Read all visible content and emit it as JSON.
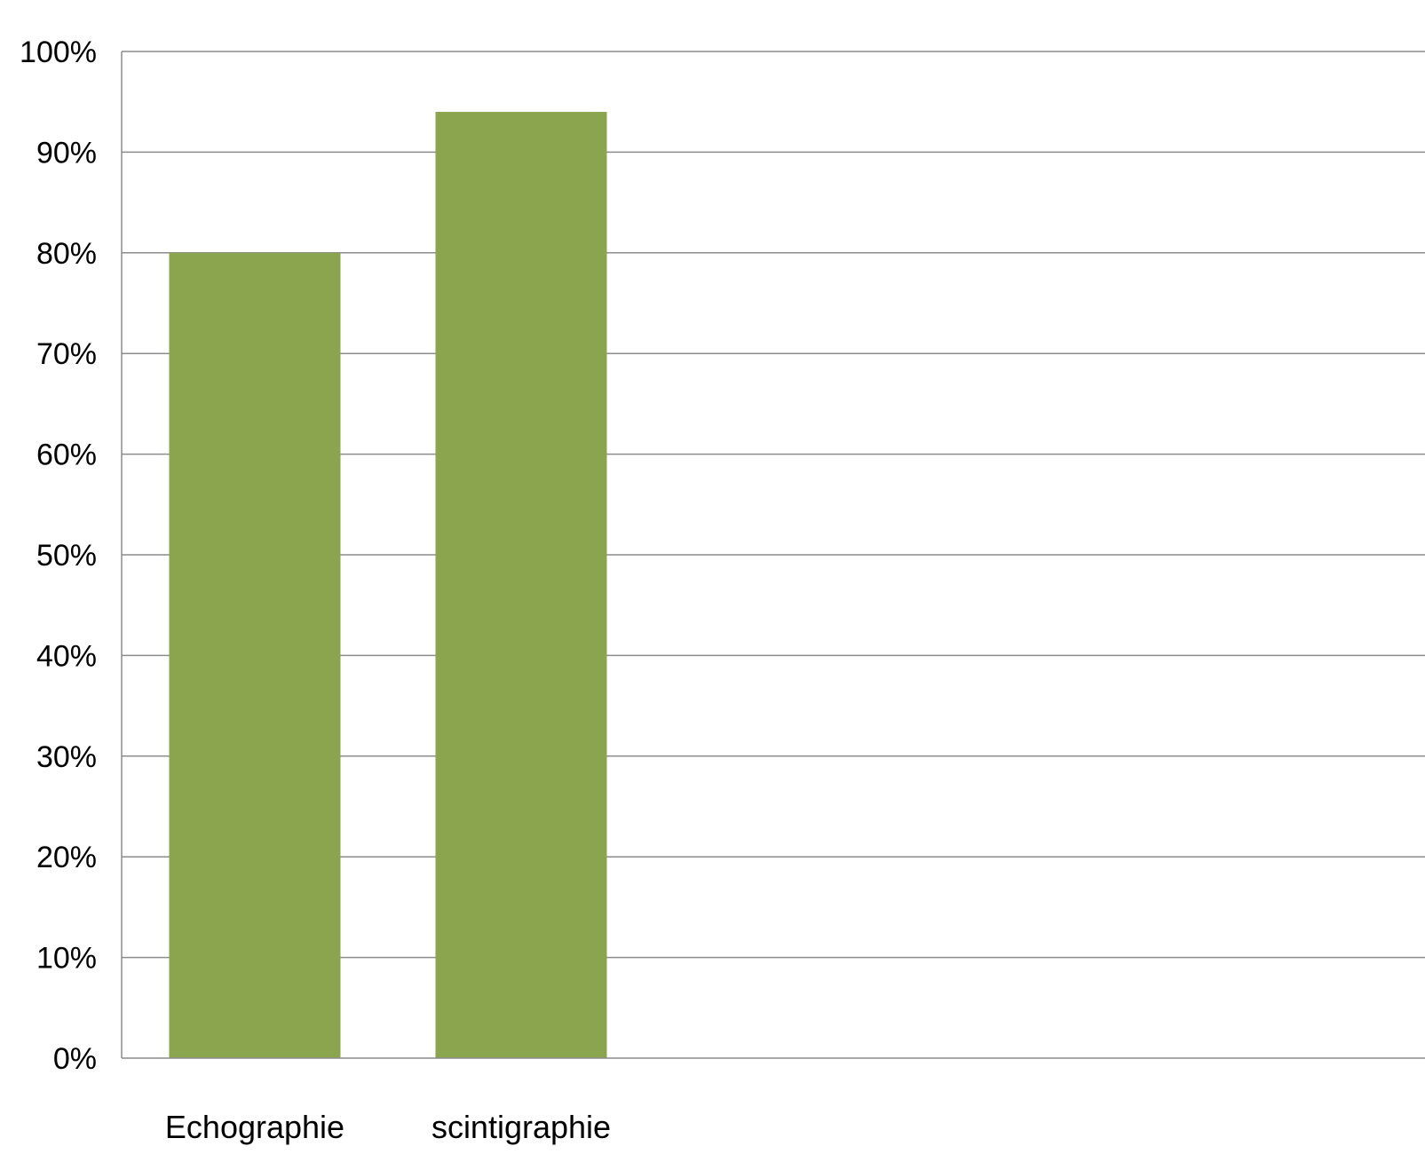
{
  "chart_data": {
    "type": "bar",
    "categories": [
      "Echographie",
      "scintigraphie"
    ],
    "series": [
      {
        "values": [
          80,
          94
        ]
      }
    ],
    "title": "",
    "xlabel": "",
    "ylabel": "",
    "ylim": [
      0,
      100
    ],
    "ytick_step": 10,
    "ytick_suffix": "%",
    "grid": true,
    "legend": "none",
    "colors": {
      "bar": "#8aa54e",
      "grid": "#8c8c8c",
      "background": "#ffffff"
    }
  }
}
